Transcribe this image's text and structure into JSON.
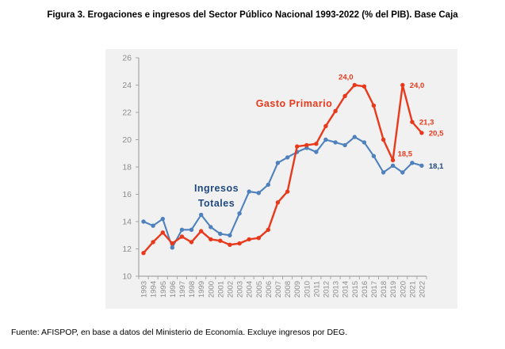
{
  "title": "Figura 3. Erogaciones e ingresos del Sector Público Nacional 1993-2022 (% del PIB). Base Caja",
  "source": "Fuente: AFISPOP, en base a datos del Ministerio de Economía. Excluye ingresos por DEG.",
  "colors": {
    "panel_bg": "#f2f1f1",
    "axis_line": "#a6a6a6",
    "tick_text": "#8c8c8c",
    "gasto_red": "#e8391d",
    "ingresos_blue": "#4f81bd",
    "ingresos_label_blue": "#1f497d"
  },
  "chart_data": {
    "type": "line",
    "title": "Erogaciones e ingresos del Sector Público Nacional (% del PIB), Base Caja",
    "xlabel": "",
    "ylabel": "",
    "ylim": [
      10,
      26
    ],
    "yticks": [
      10,
      12,
      14,
      16,
      18,
      20,
      22,
      24,
      26
    ],
    "grid": false,
    "legend_position": "inline-text-labels",
    "x": [
      1993,
      1994,
      1995,
      1996,
      1997,
      1998,
      1999,
      2000,
      2001,
      2002,
      2003,
      2004,
      2005,
      2006,
      2007,
      2008,
      2009,
      2010,
      2011,
      2012,
      2013,
      2014,
      2015,
      2016,
      2017,
      2018,
      2019,
      2020,
      2021,
      2022
    ],
    "series": [
      {
        "name": "Ingresos Totales",
        "color": "#4f81bd",
        "label_color": "#1f497d",
        "values": [
          14.0,
          13.7,
          14.2,
          12.1,
          13.4,
          13.4,
          14.5,
          13.6,
          13.1,
          13.0,
          14.6,
          16.2,
          16.1,
          16.7,
          18.3,
          18.7,
          19.1,
          19.4,
          19.1,
          20.0,
          19.8,
          19.6,
          20.2,
          19.8,
          18.8,
          17.6,
          18.1,
          17.6,
          18.3,
          18.1
        ]
      },
      {
        "name": "Gasto Primario",
        "color": "#e8391d",
        "label_color": "#e8391d",
        "values": [
          11.7,
          12.5,
          13.2,
          12.4,
          12.9,
          12.5,
          13.3,
          12.7,
          12.6,
          12.3,
          12.4,
          12.7,
          12.8,
          13.4,
          15.4,
          16.2,
          19.5,
          19.6,
          19.7,
          21.0,
          22.1,
          23.2,
          24.0,
          23.9,
          22.5,
          20.0,
          18.5,
          24.0,
          21.3,
          20.5
        ]
      }
    ],
    "point_labels": [
      {
        "series": 1,
        "year": 2015,
        "text": "24,0",
        "position": "above-left"
      },
      {
        "series": 1,
        "year": 2019,
        "text": "18,5",
        "position": "above-right"
      },
      {
        "series": 1,
        "year": 2020,
        "text": "24,0",
        "position": "right"
      },
      {
        "series": 1,
        "year": 2021,
        "text": "21,3",
        "position": "right"
      },
      {
        "series": 1,
        "year": 2022,
        "text": "20,5",
        "position": "right"
      },
      {
        "series": 0,
        "year": 2022,
        "text": "18,1",
        "position": "right"
      }
    ]
  }
}
